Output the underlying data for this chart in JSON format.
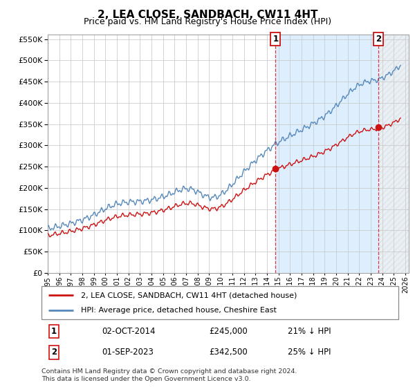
{
  "title": "2, LEA CLOSE, SANDBACH, CW11 4HT",
  "subtitle": "Price paid vs. HM Land Registry's House Price Index (HPI)",
  "ylim": [
    0,
    560000
  ],
  "yticks": [
    0,
    50000,
    100000,
    150000,
    200000,
    250000,
    300000,
    350000,
    400000,
    450000,
    500000,
    550000
  ],
  "xlim_start": 1995.0,
  "xlim_end": 2026.3,
  "hpi_color": "#5588bb",
  "price_color": "#cc1111",
  "marker1_x": 2014.75,
  "marker1_y": 245000,
  "marker2_x": 2023.67,
  "marker2_y": 342500,
  "shade_color": "#ddeeff",
  "legend_house_label": "2, LEA CLOSE, SANDBACH, CW11 4HT (detached house)",
  "legend_hpi_label": "HPI: Average price, detached house, Cheshire East",
  "table_row1": [
    "1",
    "02-OCT-2014",
    "£245,000",
    "21% ↓ HPI"
  ],
  "table_row2": [
    "2",
    "01-SEP-2023",
    "£342,500",
    "25% ↓ HPI"
  ],
  "footer": "Contains HM Land Registry data © Crown copyright and database right 2024.\nThis data is licensed under the Open Government Licence v3.0.",
  "background_color": "#ffffff",
  "grid_color": "#cccccc",
  "title_fontsize": 11,
  "subtitle_fontsize": 9
}
